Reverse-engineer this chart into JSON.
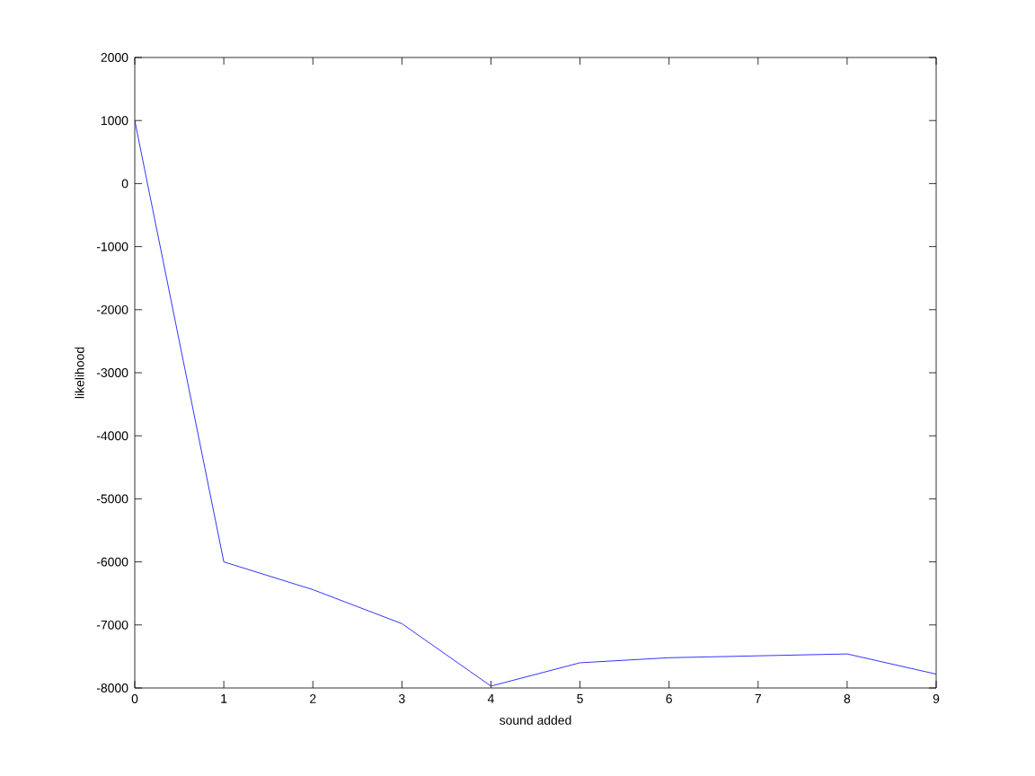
{
  "chart_data": {
    "type": "line",
    "xlabel": "sound added",
    "ylabel": "likelihood",
    "x": [
      0,
      1,
      2,
      3,
      4,
      5,
      6,
      7,
      8,
      9
    ],
    "series": [
      {
        "color": "#0000ff",
        "values": [
          1000,
          -6000,
          -6440,
          -6980,
          -7970,
          -7600,
          -7520,
          -7490,
          -7460,
          -7780
        ]
      }
    ],
    "xlim": [
      0,
      9
    ],
    "xticks": [
      0,
      1,
      2,
      3,
      4,
      5,
      6,
      7,
      8,
      9
    ],
    "ylim": [
      -8000,
      2000
    ],
    "yticks": [
      -8000,
      -7000,
      -6000,
      -5000,
      -4000,
      -3000,
      -2000,
      -1000,
      0,
      1000,
      2000
    ],
    "grid": false,
    "marker": "none",
    "line_style": "solid"
  }
}
